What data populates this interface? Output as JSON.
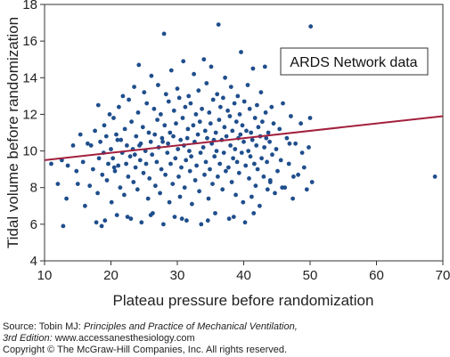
{
  "chart_data": {
    "type": "scatter",
    "xlabel": "Plateau pressure before randomization",
    "ylabel": "Tidal volume before randomization",
    "xlim": [
      10,
      70
    ],
    "ylim": [
      4,
      18
    ],
    "xticks": [
      10,
      20,
      30,
      40,
      50,
      60,
      70
    ],
    "yticks": [
      4,
      6,
      8,
      10,
      12,
      14,
      16,
      18
    ],
    "grid": false,
    "legend": {
      "label": "ARDS Network data",
      "position": "top-right"
    },
    "colors": {
      "points": "#1f4e8c",
      "regression_line": "#a3203e"
    },
    "regression_line": {
      "x": [
        10,
        70
      ],
      "y": [
        9.5,
        11.9
      ]
    },
    "series": [
      {
        "points": [
          [
            11.0,
            9.3
          ],
          [
            12.0,
            8.2
          ],
          [
            12.6,
            9.5
          ],
          [
            12.8,
            5.9
          ],
          [
            13.3,
            7.4
          ],
          [
            13.5,
            9.2
          ],
          [
            14.3,
            10.3
          ],
          [
            14.8,
            8.9
          ],
          [
            15.0,
            8.2
          ],
          [
            15.4,
            10.9
          ],
          [
            15.8,
            9.4
          ],
          [
            16.1,
            7.0
          ],
          [
            16.5,
            10.4
          ],
          [
            16.8,
            8.1
          ],
          [
            17.0,
            10.3
          ],
          [
            17.3,
            9.0
          ],
          [
            17.6,
            11.1
          ],
          [
            17.8,
            6.1
          ],
          [
            18.0,
            7.7
          ],
          [
            18.1,
            12.5
          ],
          [
            18.2,
            9.6
          ],
          [
            18.4,
            10.5
          ],
          [
            18.6,
            5.9
          ],
          [
            18.7,
            8.7
          ],
          [
            18.9,
            9.9
          ],
          [
            19.0,
            11.4
          ],
          [
            19.1,
            6.2
          ],
          [
            19.3,
            10.8
          ],
          [
            19.4,
            8.4
          ],
          [
            19.6,
            9.3
          ],
          [
            19.8,
            12.0
          ],
          [
            20.0,
            10.1
          ],
          [
            20.1,
            7.2
          ],
          [
            20.3,
            9.6
          ],
          [
            20.4,
            11.8
          ],
          [
            20.6,
            8.9
          ],
          [
            20.8,
            10.9
          ],
          [
            20.9,
            6.5
          ],
          [
            21.1,
            9.2
          ],
          [
            21.2,
            12.4
          ],
          [
            21.4,
            8.0
          ],
          [
            21.5,
            10.6
          ],
          [
            21.7,
            9.9
          ],
          [
            21.8,
            13.0
          ],
          [
            22.0,
            7.6
          ],
          [
            22.1,
            11.2
          ],
          [
            22.3,
            9.3
          ],
          [
            22.4,
            10.3
          ],
          [
            22.6,
            8.6
          ],
          [
            22.7,
            12.8
          ],
          [
            22.9,
            9.7
          ],
          [
            23.0,
            6.3
          ],
          [
            23.1,
            11.6
          ],
          [
            23.3,
            10.1
          ],
          [
            23.4,
            8.3
          ],
          [
            23.5,
            13.5
          ],
          [
            23.7,
            9.1
          ],
          [
            23.8,
            10.8
          ],
          [
            24.0,
            7.9
          ],
          [
            24.1,
            12.1
          ],
          [
            24.2,
            14.7
          ],
          [
            24.4,
            9.5
          ],
          [
            24.5,
            10.4
          ],
          [
            24.6,
            6.1
          ],
          [
            24.8,
            11.3
          ],
          [
            24.9,
            8.8
          ],
          [
            25.0,
            13.2
          ],
          [
            25.2,
            10.0
          ],
          [
            25.3,
            9.3
          ],
          [
            25.4,
            12.6
          ],
          [
            25.6,
            7.4
          ],
          [
            25.7,
            11.0
          ],
          [
            25.8,
            8.5
          ],
          [
            26.0,
            10.5
          ],
          [
            26.1,
            14.1
          ],
          [
            26.2,
            9.8
          ],
          [
            26.3,
            6.6
          ],
          [
            26.5,
            12.3
          ],
          [
            26.6,
            10.9
          ],
          [
            26.7,
            8.1
          ],
          [
            26.9,
            9.4
          ],
          [
            27.0,
            11.7
          ],
          [
            27.1,
            13.6
          ],
          [
            27.2,
            10.2
          ],
          [
            27.4,
            7.7
          ],
          [
            27.5,
            12.0
          ],
          [
            27.6,
            9.0
          ],
          [
            27.7,
            10.7
          ],
          [
            27.9,
            6.0
          ],
          [
            28.0,
            16.4
          ],
          [
            28.1,
            11.4
          ],
          [
            28.2,
            8.7
          ],
          [
            28.3,
            13.1
          ],
          [
            28.5,
            9.9
          ],
          [
            28.6,
            10.4
          ],
          [
            28.7,
            12.7
          ],
          [
            28.8,
            7.2
          ],
          [
            28.9,
            11.0
          ],
          [
            29.0,
            9.3
          ],
          [
            29.1,
            14.4
          ],
          [
            29.3,
            8.2
          ],
          [
            29.4,
            10.8
          ],
          [
            29.5,
            12.2
          ],
          [
            29.6,
            6.4
          ],
          [
            29.7,
            9.6
          ],
          [
            29.8,
            11.5
          ],
          [
            30.0,
            13.4
          ],
          [
            30.1,
            10.1
          ],
          [
            30.2,
            8.6
          ],
          [
            30.3,
            12.9
          ],
          [
            30.4,
            7.5
          ],
          [
            30.5,
            10.6
          ],
          [
            30.6,
            9.1
          ],
          [
            30.8,
            11.8
          ],
          [
            30.9,
            14.9
          ],
          [
            31.0,
            10.3
          ],
          [
            31.1,
            8.0
          ],
          [
            31.2,
            12.4
          ],
          [
            31.3,
            9.5
          ],
          [
            31.4,
            6.2
          ],
          [
            31.6,
            11.2
          ],
          [
            31.7,
            13.0
          ],
          [
            31.8,
            10.0
          ],
          [
            31.9,
            8.9
          ],
          [
            32.0,
            12.6
          ],
          [
            32.1,
            9.7
          ],
          [
            32.2,
            7.1
          ],
          [
            32.4,
            11.4
          ],
          [
            32.5,
            14.2
          ],
          [
            32.6,
            10.5
          ],
          [
            32.7,
            8.4
          ],
          [
            32.8,
            12.0
          ],
          [
            32.9,
            9.2
          ],
          [
            33.1,
            10.9
          ],
          [
            33.2,
            13.3
          ],
          [
            33.3,
            7.8
          ],
          [
            33.4,
            11.6
          ],
          [
            33.5,
            9.9
          ],
          [
            33.6,
            6.0
          ],
          [
            33.7,
            12.3
          ],
          [
            33.9,
            10.2
          ],
          [
            34.0,
            15.0
          ],
          [
            34.1,
            8.7
          ],
          [
            34.2,
            11.1
          ],
          [
            34.3,
            9.4
          ],
          [
            34.4,
            13.7
          ],
          [
            34.5,
            10.7
          ],
          [
            34.7,
            7.4
          ],
          [
            34.8,
            12.1
          ],
          [
            34.9,
            9.0
          ],
          [
            35.0,
            11.5
          ],
          [
            35.1,
            14.6
          ],
          [
            35.2,
            10.4
          ],
          [
            35.3,
            8.2
          ],
          [
            35.4,
            12.8
          ],
          [
            35.6,
            9.7
          ],
          [
            35.7,
            6.6
          ],
          [
            35.8,
            11.0
          ],
          [
            35.9,
            10.0
          ],
          [
            36.0,
            13.1
          ],
          [
            36.1,
            8.6
          ],
          [
            36.2,
            16.9
          ],
          [
            36.3,
            11.7
          ],
          [
            36.4,
            9.3
          ],
          [
            36.5,
            12.4
          ],
          [
            36.7,
            10.6
          ],
          [
            36.8,
            7.9
          ],
          [
            36.9,
            12.9
          ],
          [
            37.0,
            9.9
          ],
          [
            37.1,
            11.3
          ],
          [
            37.2,
            14.0
          ],
          [
            37.3,
            8.9
          ],
          [
            37.4,
            10.8
          ],
          [
            37.6,
            12.2
          ],
          [
            37.7,
            9.1
          ],
          [
            37.8,
            6.3
          ],
          [
            37.9,
            11.9
          ],
          [
            38.0,
            10.3
          ],
          [
            38.1,
            13.5
          ],
          [
            38.2,
            8.3
          ],
          [
            38.3,
            11.1
          ],
          [
            38.4,
            9.6
          ],
          [
            38.6,
            12.6
          ],
          [
            38.7,
            10.1
          ],
          [
            38.8,
            7.6
          ],
          [
            38.9,
            11.6
          ],
          [
            39.0,
            9.4
          ],
          [
            39.1,
            13.0
          ],
          [
            39.2,
            10.7
          ],
          [
            39.3,
            8.8
          ],
          [
            39.4,
            12.0
          ],
          [
            39.6,
            15.4
          ],
          [
            39.7,
            9.9
          ],
          [
            39.8,
            11.4
          ],
          [
            39.9,
            7.2
          ],
          [
            40.0,
            10.5
          ],
          [
            40.1,
            12.7
          ],
          [
            40.2,
            6.1
          ],
          [
            40.3,
            9.2
          ],
          [
            40.4,
            11.1
          ],
          [
            40.6,
            13.6
          ],
          [
            40.7,
            10.0
          ],
          [
            40.8,
            8.5
          ],
          [
            40.9,
            12.3
          ],
          [
            41.0,
            9.7
          ],
          [
            41.1,
            11.0
          ],
          [
            41.2,
            7.5
          ],
          [
            41.3,
            10.6
          ],
          [
            41.4,
            14.5
          ],
          [
            41.6,
            9.3
          ],
          [
            41.7,
            11.8
          ],
          [
            41.8,
            8.1
          ],
          [
            41.9,
            10.3
          ],
          [
            42.0,
            12.5
          ],
          [
            42.1,
            9.0
          ],
          [
            42.2,
            11.3
          ],
          [
            42.4,
            7.0
          ],
          [
            42.5,
            10.8
          ],
          [
            42.6,
            13.2
          ],
          [
            42.7,
            9.6
          ],
          [
            42.8,
            11.6
          ],
          [
            43.0,
            8.6
          ],
          [
            43.1,
            10.2
          ],
          [
            43.2,
            14.6
          ],
          [
            43.3,
            12.1
          ],
          [
            43.5,
            9.4
          ],
          [
            43.6,
            7.9
          ],
          [
            43.7,
            11.0
          ],
          [
            43.9,
            10.5
          ],
          [
            44.0,
            8.3
          ],
          [
            44.2,
            12.4
          ],
          [
            44.3,
            9.8
          ],
          [
            44.5,
            11.5
          ],
          [
            44.7,
            7.7
          ],
          [
            44.9,
            10.1
          ],
          [
            45.1,
            8.9
          ],
          [
            45.4,
            11.2
          ],
          [
            45.6,
            9.5
          ],
          [
            45.9,
            12.6
          ],
          [
            46.2,
            8.0
          ],
          [
            46.5,
            10.7
          ],
          [
            46.8,
            9.3
          ],
          [
            47.1,
            11.9
          ],
          [
            47.4,
            7.4
          ],
          [
            47.8,
            10.4
          ],
          [
            48.2,
            8.7
          ],
          [
            48.6,
            11.5
          ],
          [
            49.1,
            9.1
          ],
          [
            49.5,
            7.9
          ],
          [
            49.8,
            10.2
          ],
          [
            50.0,
            11.8
          ],
          [
            50.1,
            16.8
          ],
          [
            50.3,
            8.3
          ],
          [
            68.8,
            8.6
          ],
          [
            22.5,
            6.4
          ],
          [
            26.0,
            6.5
          ],
          [
            30.7,
            6.3
          ],
          [
            34.6,
            6.2
          ],
          [
            38.5,
            6.4
          ],
          [
            41.5,
            6.6
          ],
          [
            44.0,
            8.4
          ],
          [
            45.8,
            8.0
          ],
          [
            47.5,
            8.6
          ],
          [
            48.8,
            9.9
          ],
          [
            21.0,
            10.6
          ],
          [
            24.3,
            10.3
          ],
          [
            27.8,
            10.5
          ],
          [
            31.5,
            10.7
          ],
          [
            35.5,
            10.6
          ],
          [
            39.5,
            10.9
          ],
          [
            43.4,
            10.7
          ],
          [
            46.9,
            10.4
          ],
          [
            20.5,
            9.1
          ],
          [
            23.6,
            9.8
          ]
        ]
      }
    ]
  },
  "source": {
    "prefix": "Source: Tobin MJ: ",
    "book_title": "Principles and Practice of Mechanical Ventilation,",
    "edition": "3rd Edition: ",
    "website": "www.accessanesthesiology.com",
    "copyright": "Copyright © The McGraw-Hill Companies, Inc. All rights reserved."
  }
}
